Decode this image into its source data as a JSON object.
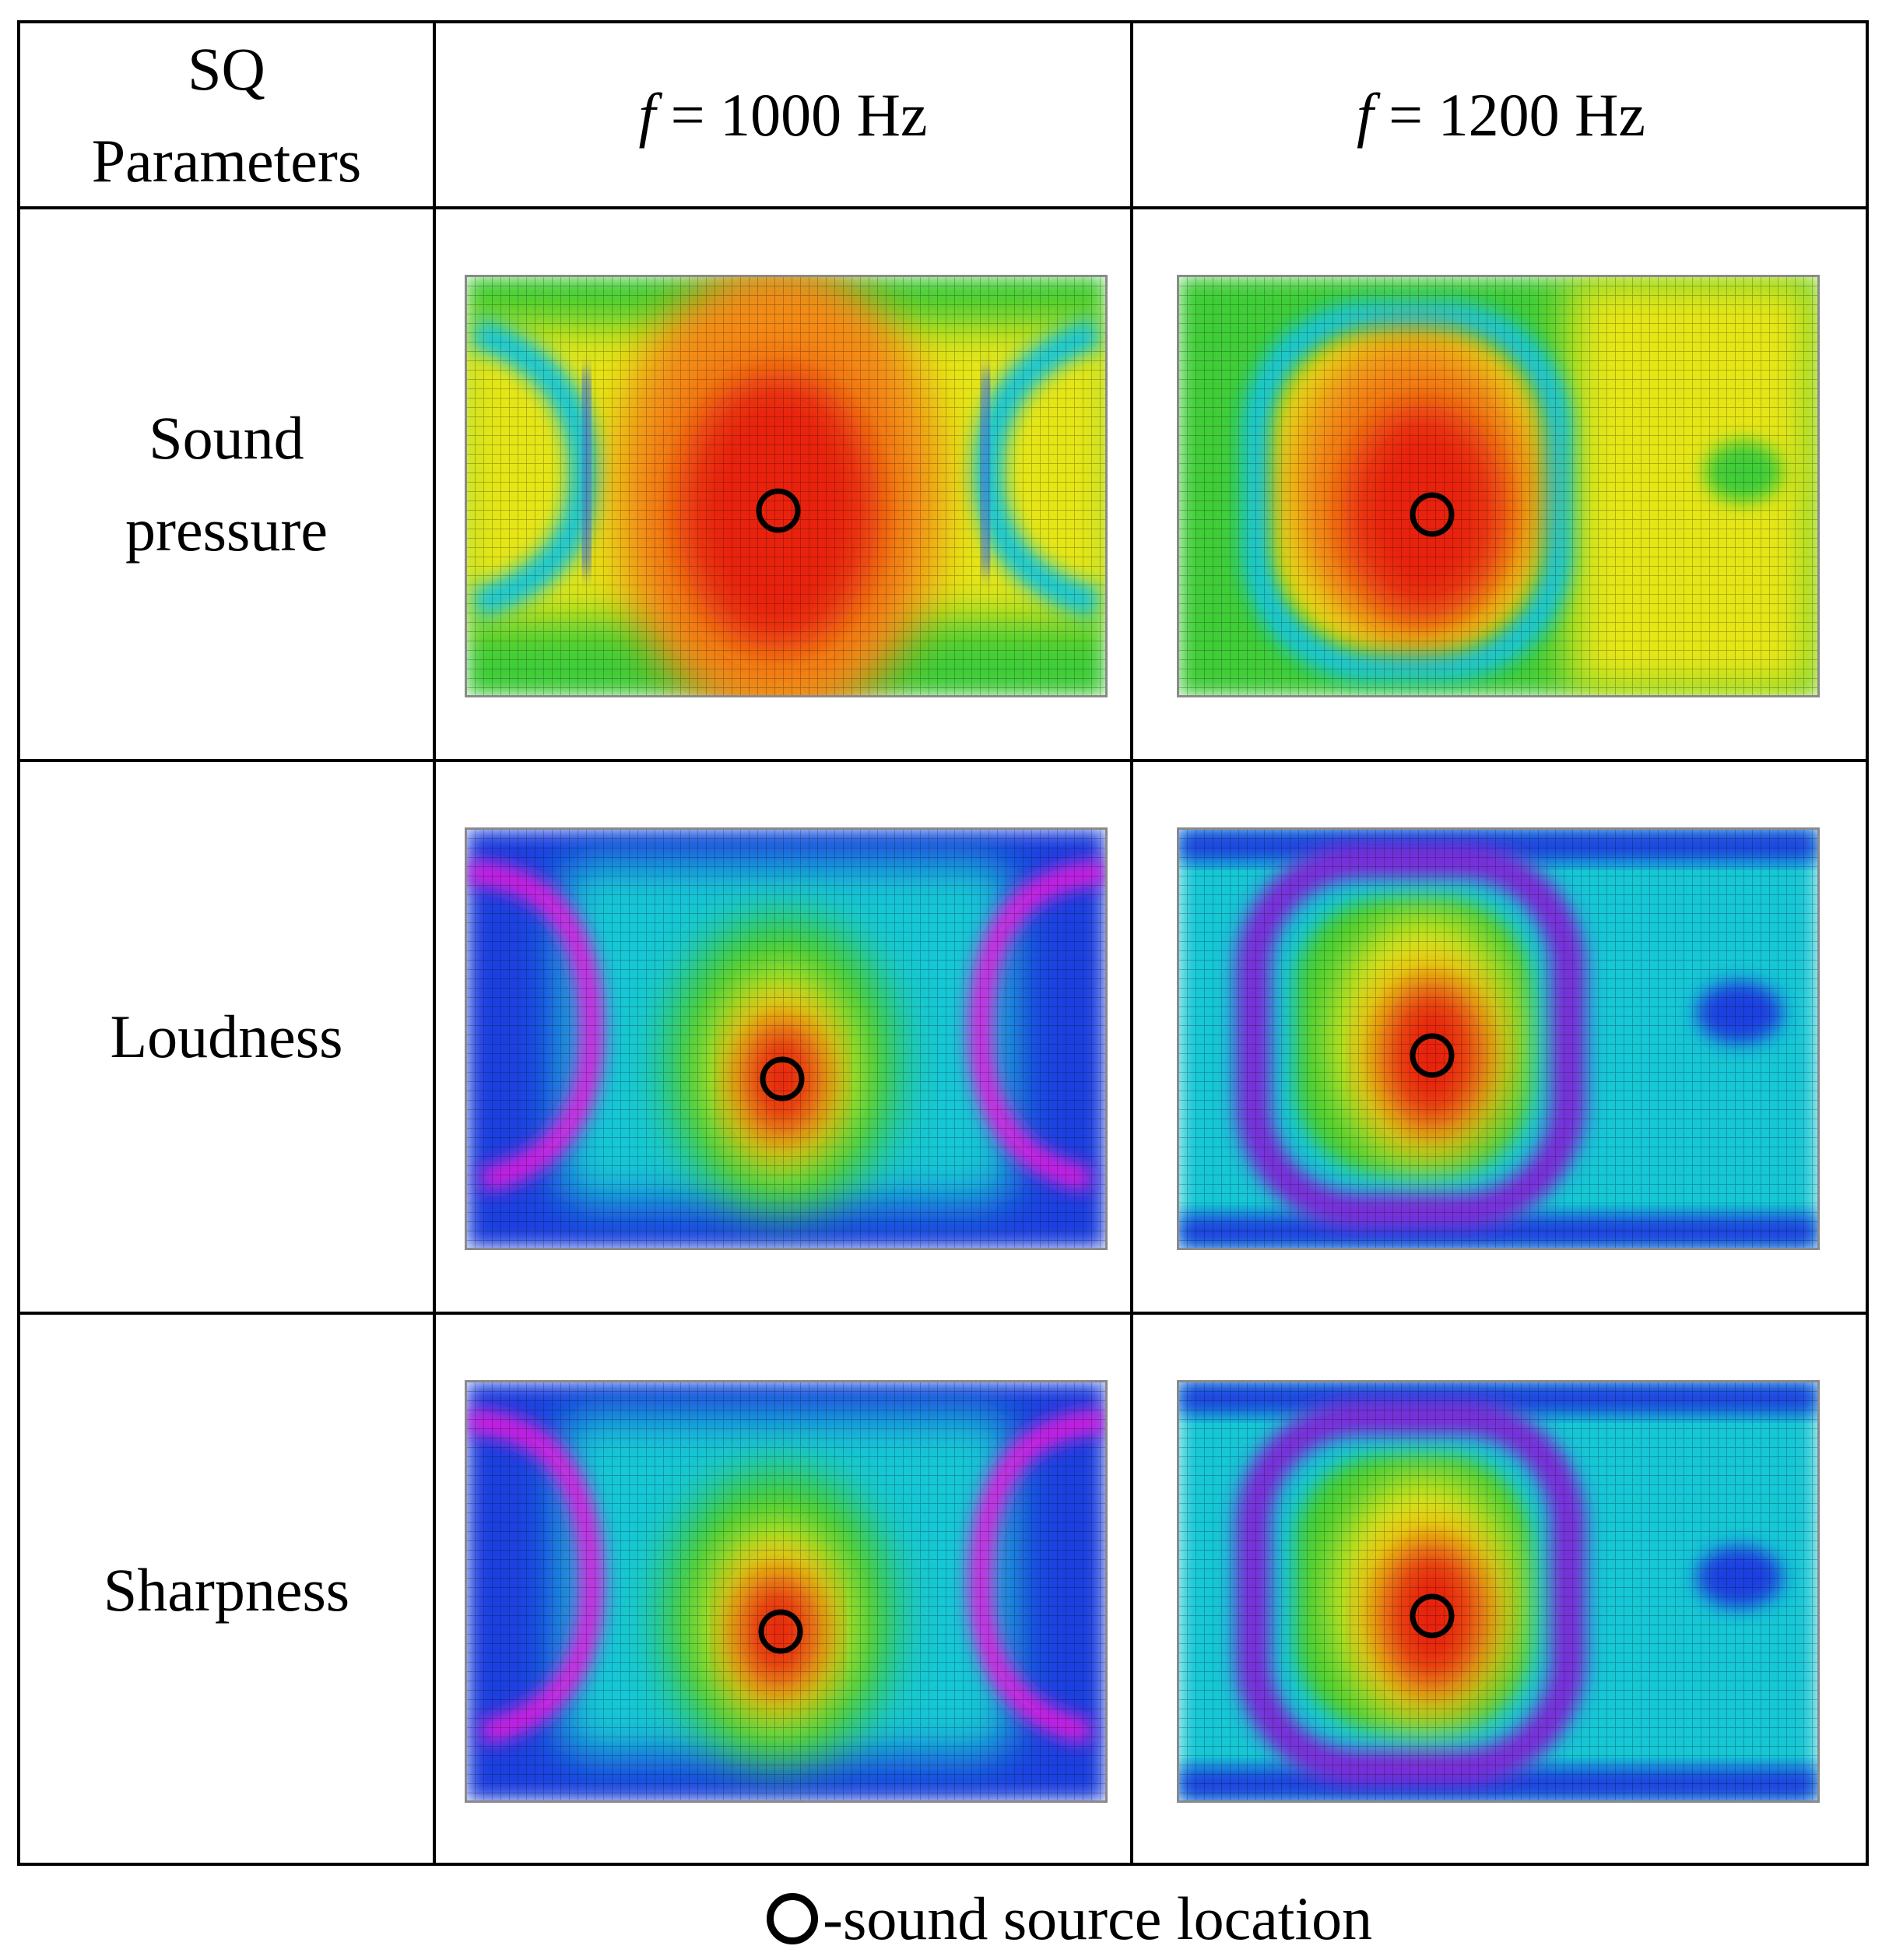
{
  "table": {
    "header": {
      "param_line1": "SQ",
      "param_line2": "Parameters",
      "col1": {
        "symbol": "f",
        "rest": " = 1000 Hz"
      },
      "col2": {
        "symbol": "f",
        "rest": " = 1200 Hz"
      }
    },
    "rows": [
      {
        "label_line1": "Sound",
        "label_line2": "pressure"
      },
      {
        "label_line1": "Loudness",
        "label_line2": ""
      },
      {
        "label_line1": "Sharpness",
        "label_line2": ""
      }
    ]
  },
  "legend": {
    "symbol_icon": "circle-outline-icon",
    "text": "-sound source location"
  },
  "colors": {
    "red": "#e8230e",
    "orange": "#f38a12",
    "yellow": "#e6e614",
    "green": "#3fcd38",
    "cyan": "#19c7d6",
    "blue": "#1d3fe0",
    "purple": "#7a2bd8",
    "magenta": "#e21ee0"
  }
}
